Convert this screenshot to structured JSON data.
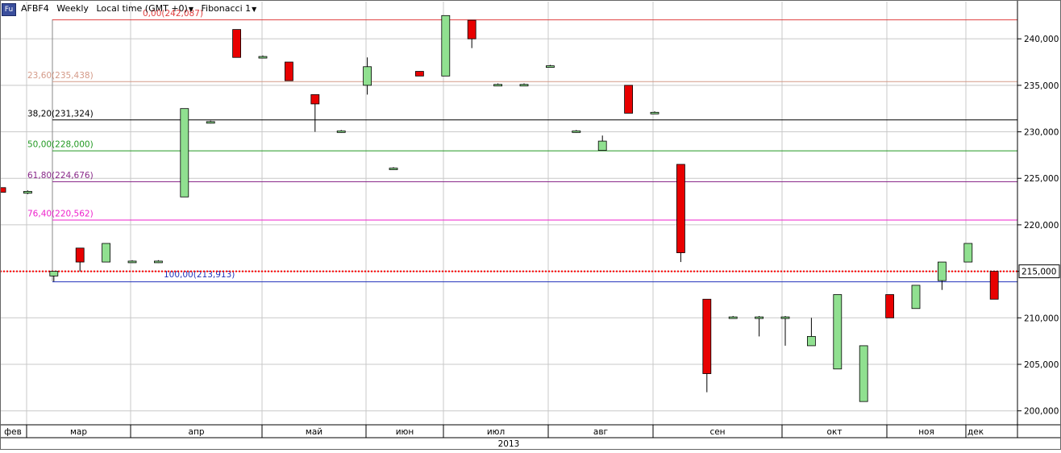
{
  "header": {
    "icon_label": "Fu",
    "symbol": "AFBF4",
    "period": "Weekly",
    "timezone": "Local time (GMT +0)",
    "indicator": "Fibonacci 1"
  },
  "colors": {
    "up": "#90e090",
    "down": "#e80000",
    "grid": "#c8c8c8",
    "price_marker": "#ff0000"
  },
  "chart_data": {
    "type": "candlestick",
    "x_year_label": "2013",
    "y_range": [
      198500,
      244000
    ],
    "y_ticks": [
      {
        "value": 200000,
        "label": "200,000"
      },
      {
        "value": 205000,
        "label": "205,000"
      },
      {
        "value": 210000,
        "label": "210,000"
      },
      {
        "value": 215000,
        "label": "215,000"
      },
      {
        "value": 220000,
        "label": "220,000"
      },
      {
        "value": 225000,
        "label": "225,000"
      },
      {
        "value": 230000,
        "label": "230,000"
      },
      {
        "value": 235000,
        "label": "235,000"
      },
      {
        "value": 240000,
        "label": "240,000"
      }
    ],
    "month_labels": [
      "фев",
      "мар",
      "апр",
      "май",
      "июн",
      "июл",
      "авг",
      "сен",
      "окт",
      "ноя",
      "дек"
    ],
    "current_price": {
      "value": 215000,
      "label": "215,000"
    },
    "fibonacci": {
      "high": 242087,
      "low": 213913,
      "levels": [
        {
          "label": "0,00(242,087)",
          "value": 242087,
          "color": "#e04040"
        },
        {
          "label": "23,60(235,438)",
          "value": 235438,
          "color": "#d49a88"
        },
        {
          "label": "38,20(231,324)",
          "value": 231324,
          "color": "#000000"
        },
        {
          "label": "50,00(228,000)",
          "value": 228000,
          "color": "#229922"
        },
        {
          "label": "61,80(224,676)",
          "value": 224676,
          "color": "#8a2a8a"
        },
        {
          "label": "76,40(220,562)",
          "value": 220562,
          "color": "#ee22cc"
        },
        {
          "label": "100,00(213,913)",
          "value": 213913,
          "color": "#2233bb"
        }
      ]
    },
    "candles": [
      {
        "week": 0,
        "open": 224000,
        "high": 224000,
        "low": 223500,
        "close": 223500
      },
      {
        "week": 1,
        "open": 223400,
        "high": 223700,
        "low": 223300,
        "close": 223600
      },
      {
        "week": 2,
        "open": 214500,
        "high": 215000,
        "low": 213900,
        "close": 215000
      },
      {
        "week": 3,
        "open": 217500,
        "high": 217500,
        "low": 215000,
        "close": 216000
      },
      {
        "week": 4,
        "open": 216000,
        "high": 218000,
        "low": 216000,
        "close": 218000
      },
      {
        "week": 5,
        "open": 216000,
        "high": 216200,
        "low": 215900,
        "close": 216100
      },
      {
        "week": 6,
        "open": 216000,
        "high": 216200,
        "low": 215900,
        "close": 216100
      },
      {
        "week": 7,
        "open": 223000,
        "high": 232500,
        "low": 223000,
        "close": 232500
      },
      {
        "week": 8,
        "open": 231000,
        "high": 231200,
        "low": 230900,
        "close": 231100
      },
      {
        "week": 9,
        "open": 241000,
        "high": 241000,
        "low": 238000,
        "close": 238000
      },
      {
        "week": 10,
        "open": 238000,
        "high": 238200,
        "low": 237900,
        "close": 238100
      },
      {
        "week": 11,
        "open": 237500,
        "high": 237500,
        "low": 235500,
        "close": 235500
      },
      {
        "week": 12,
        "open": 234000,
        "high": 234000,
        "low": 230000,
        "close": 233000
      },
      {
        "week": 13,
        "open": 230000,
        "high": 230200,
        "low": 229900,
        "close": 230100
      },
      {
        "week": 14,
        "open": 235000,
        "high": 238000,
        "low": 234000,
        "close": 237000
      },
      {
        "week": 15,
        "open": 226000,
        "high": 226200,
        "low": 225900,
        "close": 226100
      },
      {
        "week": 16,
        "open": 236500,
        "high": 236500,
        "low": 236000,
        "close": 236000
      },
      {
        "week": 17,
        "open": 236000,
        "high": 242500,
        "low": 236000,
        "close": 242500
      },
      {
        "week": 18,
        "open": 242000,
        "high": 242000,
        "low": 239000,
        "close": 240000
      },
      {
        "week": 19,
        "open": 235000,
        "high": 235200,
        "low": 234900,
        "close": 235100
      },
      {
        "week": 20,
        "open": 235000,
        "high": 235200,
        "low": 234900,
        "close": 235100
      },
      {
        "week": 21,
        "open": 237000,
        "high": 237200,
        "low": 236900,
        "close": 237100
      },
      {
        "week": 22,
        "open": 230000,
        "high": 230200,
        "low": 229900,
        "close": 230100
      },
      {
        "week": 23,
        "open": 228000,
        "high": 229600,
        "low": 228000,
        "close": 229000
      },
      {
        "week": 24,
        "open": 235000,
        "high": 235000,
        "low": 232000,
        "close": 232000
      },
      {
        "week": 25,
        "open": 232000,
        "high": 232200,
        "low": 231900,
        "close": 232100
      },
      {
        "week": 26,
        "open": 226500,
        "high": 226500,
        "low": 216000,
        "close": 217000
      },
      {
        "week": 27,
        "open": 212000,
        "high": 212000,
        "low": 202000,
        "close": 204000
      },
      {
        "week": 28,
        "open": 210000,
        "high": 210200,
        "low": 209900,
        "close": 210100
      },
      {
        "week": 29,
        "open": 210000,
        "high": 210200,
        "low": 208000,
        "close": 210100
      },
      {
        "week": 30,
        "open": 210000,
        "high": 210200,
        "low": 207000,
        "close": 210100
      },
      {
        "week": 31,
        "open": 207000,
        "high": 210000,
        "low": 207000,
        "close": 208000
      },
      {
        "week": 32,
        "open": 204500,
        "high": 212500,
        "low": 204500,
        "close": 212500
      },
      {
        "week": 33,
        "open": 201000,
        "high": 207000,
        "low": 201000,
        "close": 207000
      },
      {
        "week": 34,
        "open": 212500,
        "high": 212500,
        "low": 210000,
        "close": 210000
      },
      {
        "week": 35,
        "open": 211000,
        "high": 213500,
        "low": 211000,
        "close": 213500
      },
      {
        "week": 36,
        "open": 214000,
        "high": 216000,
        "low": 213000,
        "close": 216000
      },
      {
        "week": 37,
        "open": 216000,
        "high": 218000,
        "low": 216000,
        "close": 218000
      },
      {
        "week": 38,
        "open": 215000,
        "high": 215000,
        "low": 212000,
        "close": 212000
      }
    ]
  }
}
